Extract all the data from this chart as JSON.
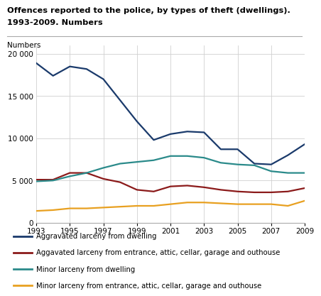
{
  "title_line1": "Offences reported to the police, by types of theft (dwellings).",
  "title_line2": "1993-2009. Numbers",
  "numbers_label": "Numbers",
  "years": [
    1993,
    1994,
    1995,
    1996,
    1997,
    1998,
    1999,
    2000,
    2001,
    2002,
    2003,
    2004,
    2005,
    2006,
    2007,
    2008,
    2009
  ],
  "series": [
    {
      "label": "Aggravated larceny from dwelling",
      "values": [
        18900,
        17400,
        18500,
        18200,
        17000,
        14500,
        12000,
        9800,
        10500,
        10800,
        10700,
        8700,
        8700,
        7000,
        6900,
        8000,
        9300
      ],
      "color": "#1a3a6b"
    },
    {
      "label": "Aggavated larceny from entrance, attic, cellar, garage and outhouse",
      "values": [
        5100,
        5100,
        5900,
        5900,
        5200,
        4800,
        3900,
        3700,
        4300,
        4400,
        4200,
        3900,
        3700,
        3600,
        3600,
        3700,
        4100
      ],
      "color": "#8b1a1a"
    },
    {
      "label": "Minor larceny from dwelling",
      "values": [
        4900,
        5000,
        5500,
        5900,
        6500,
        7000,
        7200,
        7400,
        7900,
        7900,
        7700,
        7100,
        6900,
        6800,
        6100,
        5900,
        5900
      ],
      "color": "#2a8a8a"
    },
    {
      "label": "Minor larceny from entrance, attic, cellar, garage and outhouse",
      "values": [
        1400,
        1500,
        1700,
        1700,
        1800,
        1900,
        2000,
        2000,
        2200,
        2400,
        2400,
        2300,
        2200,
        2200,
        2200,
        2000,
        2600
      ],
      "color": "#e8a020"
    }
  ],
  "ylim": [
    0,
    21000
  ],
  "yticks": [
    0,
    5000,
    10000,
    15000,
    20000
  ],
  "ytick_labels": [
    "0",
    "5 000",
    "10 000",
    "15 000",
    "20 000"
  ],
  "xticks": [
    1993,
    1995,
    1997,
    1999,
    2001,
    2003,
    2005,
    2007,
    2009
  ],
  "background_color": "#ffffff",
  "grid_color": "#d0d0d0",
  "line_width": 1.6
}
